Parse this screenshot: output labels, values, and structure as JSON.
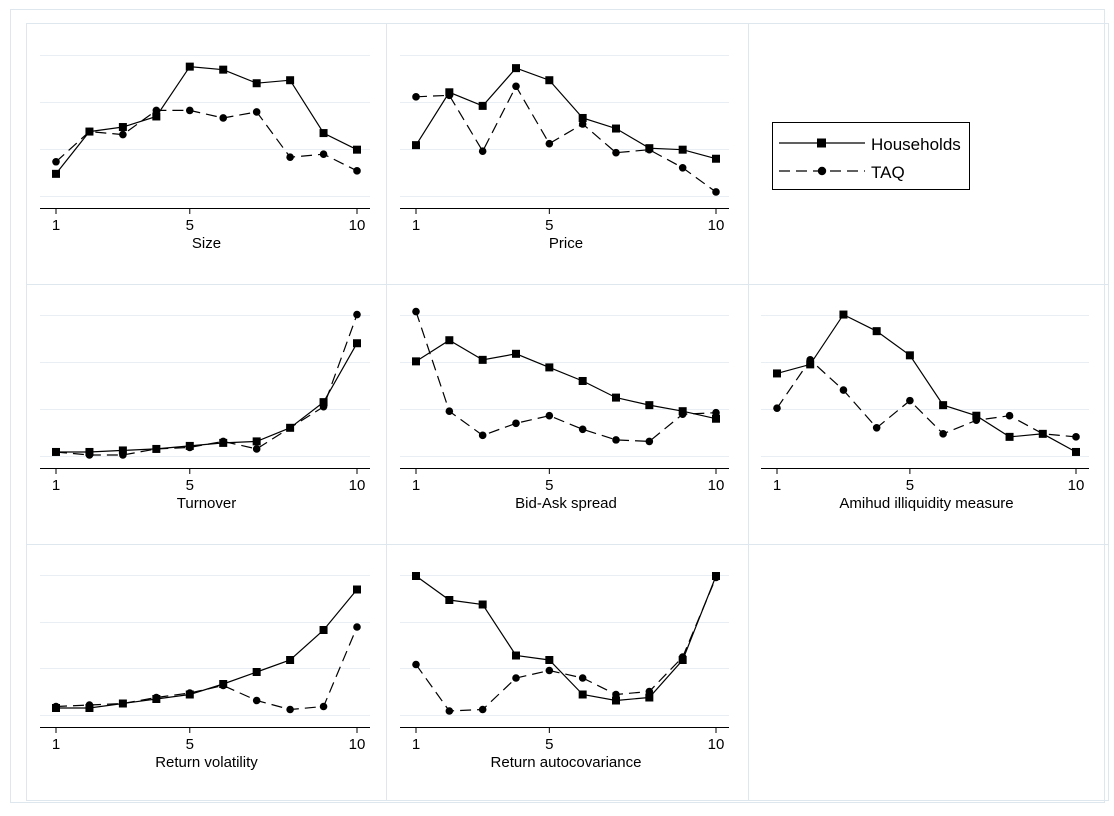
{
  "legend": {
    "households": "Households",
    "taq": "TAQ"
  },
  "colors": {
    "line": "#000000",
    "grid": "#e8eef3",
    "frame": "#dfe7ee",
    "axis": "#000000"
  },
  "chart_data": [
    {
      "type": "line",
      "xlabel": "Size",
      "x": [
        1,
        2,
        3,
        4,
        5,
        6,
        7,
        8,
        9,
        10
      ],
      "xticks": [
        1,
        5,
        10
      ],
      "ylim": [
        0,
        1
      ],
      "series": [
        {
          "name": "Households",
          "marker": "square",
          "style": "solid",
          "values": [
            0.16,
            0.44,
            0.47,
            0.54,
            0.87,
            0.85,
            0.76,
            0.78,
            0.43,
            0.32
          ]
        },
        {
          "name": "TAQ",
          "marker": "circle",
          "style": "dashed",
          "values": [
            0.24,
            0.44,
            0.42,
            0.58,
            0.58,
            0.53,
            0.57,
            0.27,
            0.29,
            0.18
          ]
        }
      ]
    },
    {
      "type": "line",
      "xlabel": "Price",
      "x": [
        1,
        2,
        3,
        4,
        5,
        6,
        7,
        8,
        9,
        10
      ],
      "xticks": [
        1,
        5,
        10
      ],
      "ylim": [
        0,
        1
      ],
      "series": [
        {
          "name": "Households",
          "marker": "square",
          "style": "solid",
          "values": [
            0.35,
            0.7,
            0.61,
            0.86,
            0.78,
            0.53,
            0.46,
            0.33,
            0.32,
            0.26
          ]
        },
        {
          "name": "TAQ",
          "marker": "circle",
          "style": "dashed",
          "values": [
            0.67,
            0.68,
            0.31,
            0.74,
            0.36,
            0.49,
            0.3,
            0.32,
            0.2,
            0.04
          ]
        }
      ]
    },
    {
      "type": "line",
      "xlabel": "Turnover",
      "x": [
        1,
        2,
        3,
        4,
        5,
        6,
        7,
        8,
        9,
        10
      ],
      "xticks": [
        1,
        5,
        10
      ],
      "ylim": [
        0,
        1
      ],
      "series": [
        {
          "name": "Households",
          "marker": "square",
          "style": "solid",
          "values": [
            0.04,
            0.04,
            0.05,
            0.06,
            0.08,
            0.1,
            0.11,
            0.2,
            0.37,
            0.76
          ]
        },
        {
          "name": "TAQ",
          "marker": "circle",
          "style": "dashed",
          "values": [
            0.04,
            0.02,
            0.02,
            0.06,
            0.07,
            0.11,
            0.06,
            0.2,
            0.34,
            0.95
          ]
        }
      ]
    },
    {
      "type": "line",
      "xlabel": "Bid-Ask spread",
      "x": [
        1,
        2,
        3,
        4,
        5,
        6,
        7,
        8,
        9,
        10
      ],
      "xticks": [
        1,
        5,
        10
      ],
      "ylim": [
        0,
        1
      ],
      "series": [
        {
          "name": "Households",
          "marker": "square",
          "style": "solid",
          "values": [
            0.64,
            0.78,
            0.65,
            0.69,
            0.6,
            0.51,
            0.4,
            0.35,
            0.31,
            0.26
          ]
        },
        {
          "name": "TAQ",
          "marker": "circle",
          "style": "dashed",
          "values": [
            0.97,
            0.31,
            0.15,
            0.23,
            0.28,
            0.19,
            0.12,
            0.11,
            0.29,
            0.3
          ]
        }
      ]
    },
    {
      "type": "line",
      "xlabel": "Amihud illiquidity measure",
      "x": [
        1,
        2,
        3,
        4,
        5,
        6,
        7,
        8,
        9,
        10
      ],
      "xticks": [
        1,
        5,
        10
      ],
      "ylim": [
        0,
        1
      ],
      "series": [
        {
          "name": "Households",
          "marker": "square",
          "style": "solid",
          "values": [
            0.56,
            0.62,
            0.95,
            0.84,
            0.68,
            0.35,
            0.28,
            0.14,
            0.16,
            0.04
          ]
        },
        {
          "name": "TAQ",
          "marker": "circle",
          "style": "dashed",
          "values": [
            0.33,
            0.65,
            0.45,
            0.2,
            0.38,
            0.16,
            0.25,
            0.28,
            0.16,
            0.14
          ]
        }
      ]
    },
    {
      "type": "line",
      "xlabel": "Return volatility",
      "x": [
        1,
        2,
        3,
        4,
        5,
        6,
        7,
        8,
        9,
        10
      ],
      "xticks": [
        1,
        5,
        10
      ],
      "ylim": [
        0,
        1
      ],
      "series": [
        {
          "name": "Households",
          "marker": "square",
          "style": "solid",
          "values": [
            0.06,
            0.06,
            0.09,
            0.12,
            0.15,
            0.22,
            0.3,
            0.38,
            0.58,
            0.85
          ]
        },
        {
          "name": "TAQ",
          "marker": "circle",
          "style": "dashed",
          "values": [
            0.07,
            0.08,
            0.09,
            0.13,
            0.16,
            0.21,
            0.11,
            0.05,
            0.07,
            0.6
          ]
        }
      ]
    },
    {
      "type": "line",
      "xlabel": "Return autocovariance",
      "x": [
        1,
        2,
        3,
        4,
        5,
        6,
        7,
        8,
        9,
        10
      ],
      "xticks": [
        1,
        5,
        10
      ],
      "ylim": [
        0,
        1
      ],
      "series": [
        {
          "name": "Households",
          "marker": "square",
          "style": "solid",
          "values": [
            0.94,
            0.78,
            0.75,
            0.41,
            0.38,
            0.15,
            0.11,
            0.13,
            0.38,
            0.94
          ]
        },
        {
          "name": "TAQ",
          "marker": "circle",
          "style": "dashed",
          "values": [
            0.35,
            0.04,
            0.05,
            0.26,
            0.31,
            0.26,
            0.15,
            0.17,
            0.4,
            0.93
          ]
        }
      ]
    }
  ]
}
